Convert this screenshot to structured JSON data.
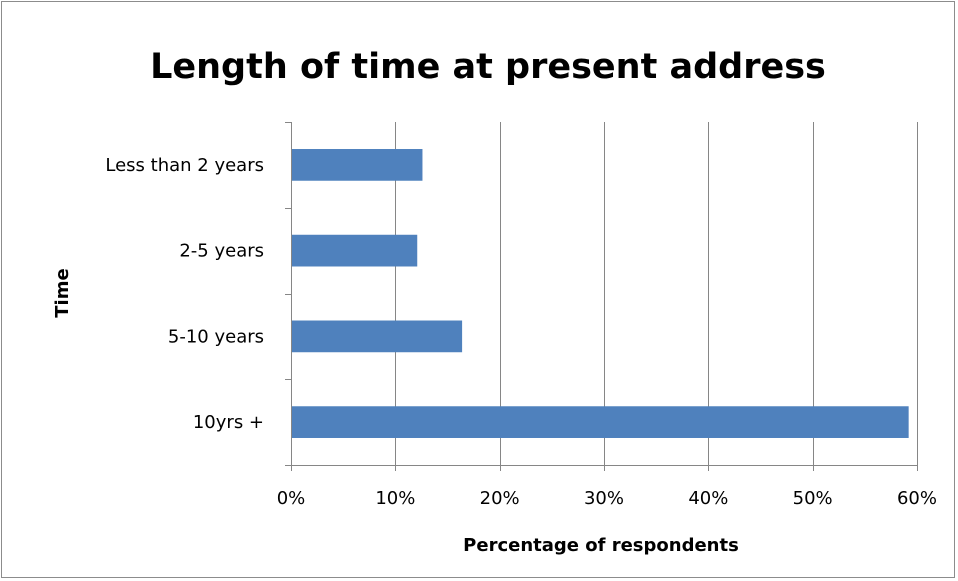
{
  "chart_data": {
    "type": "bar",
    "orientation": "horizontal",
    "title": "Length of time at present address",
    "xlabel": "Percentage of respondents",
    "ylabel": "Time",
    "categories": [
      "Less than 2 years",
      "2-5 years",
      "5-10 years",
      "10yrs +"
    ],
    "values": [
      12.6,
      12.1,
      16.4,
      59.2
    ],
    "value_unit": "%",
    "xlim": [
      0,
      60
    ],
    "xticks": [
      "0%",
      "10%",
      "20%",
      "30%",
      "40%",
      "50%",
      "60%"
    ],
    "xtick_values": [
      0,
      10,
      20,
      30,
      40,
      50,
      60
    ],
    "grid": "vertical major gridlines",
    "legend": "none",
    "bar_color": "#4f81bd",
    "gridline_color": "#868686"
  }
}
